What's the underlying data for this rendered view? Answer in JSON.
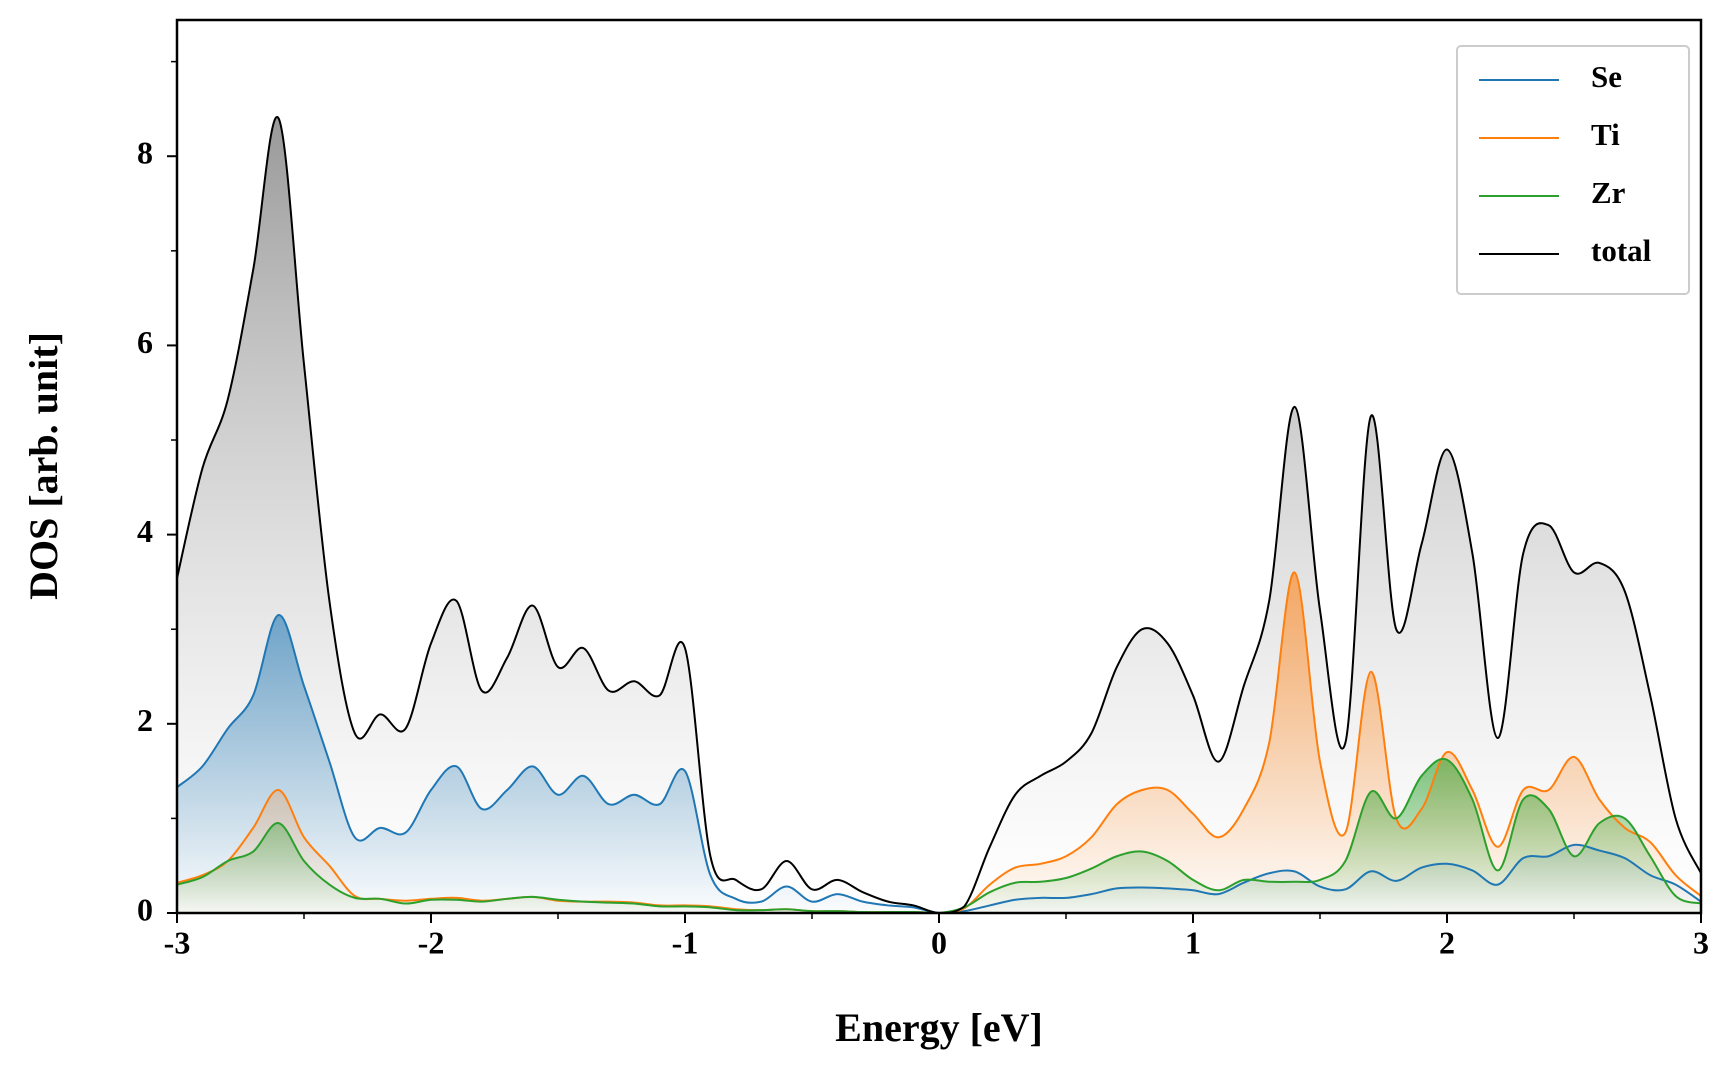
{
  "chart_data": {
    "type": "line",
    "xlabel": "Energy [eV]",
    "ylabel": "DOS [arb. unit]",
    "xlim": [
      -3,
      3
    ],
    "ylim": [
      0,
      9.44
    ],
    "xticks": [
      -3,
      -2,
      -1,
      0,
      1,
      2,
      3
    ],
    "yticks": [
      0,
      2,
      4,
      6,
      8
    ],
    "xminorticks": [
      -2.5,
      -1.5,
      -0.5,
      0.5,
      1.5,
      2.5
    ],
    "yminorticks": [
      1,
      3,
      5,
      7,
      9
    ],
    "legend": "upper right",
    "fill": true,
    "x": [
      -3,
      -2.9,
      -2.8,
      -2.7,
      -2.6,
      -2.5,
      -2.4,
      -2.3,
      -2.2,
      -2.1,
      -2,
      -1.9,
      -1.8,
      -1.7,
      -1.6,
      -1.5,
      -1.4,
      -1.3,
      -1.2,
      -1.1,
      -1,
      -0.9,
      -0.8,
      -0.7,
      -0.6,
      -0.5,
      -0.4,
      -0.3,
      -0.2,
      -0.1,
      0,
      0.1,
      0.2,
      0.3,
      0.4,
      0.5,
      0.6,
      0.7,
      0.8,
      0.9,
      1,
      1.1,
      1.2,
      1.3,
      1.4,
      1.5,
      1.6,
      1.7,
      1.8,
      1.9,
      2,
      2.1,
      2.2,
      2.3,
      2.4,
      2.5,
      2.6,
      2.7,
      2.8,
      2.9,
      3
    ],
    "series": [
      {
        "name": "Se",
        "color": "#1f77b4",
        "values": [
          1.33,
          1.55,
          1.95,
          2.3,
          3.15,
          2.4,
          1.6,
          0.8,
          0.9,
          0.85,
          1.3,
          1.55,
          1.1,
          1.3,
          1.55,
          1.25,
          1.45,
          1.15,
          1.25,
          1.15,
          1.5,
          0.4,
          0.15,
          0.12,
          0.28,
          0.12,
          0.2,
          0.12,
          0.08,
          0.06,
          0,
          0.02,
          0.08,
          0.14,
          0.16,
          0.16,
          0.2,
          0.26,
          0.27,
          0.26,
          0.24,
          0.2,
          0.32,
          0.42,
          0.44,
          0.28,
          0.25,
          0.44,
          0.34,
          0.48,
          0.52,
          0.45,
          0.3,
          0.58,
          0.6,
          0.72,
          0.66,
          0.58,
          0.4,
          0.3,
          0.12
        ]
      },
      {
        "name": "Ti",
        "color": "#ff7f0e",
        "values": [
          0.32,
          0.4,
          0.55,
          0.9,
          1.3,
          0.8,
          0.5,
          0.18,
          0.15,
          0.13,
          0.15,
          0.16,
          0.13,
          0.15,
          0.17,
          0.13,
          0.12,
          0.12,
          0.11,
          0.08,
          0.08,
          0.07,
          0.04,
          0.03,
          0.04,
          0.02,
          0.02,
          0.01,
          0.01,
          0.01,
          0,
          0.05,
          0.3,
          0.48,
          0.52,
          0.6,
          0.8,
          1.15,
          1.3,
          1.3,
          1.05,
          0.8,
          1.1,
          1.8,
          3.6,
          1.6,
          0.85,
          2.55,
          1,
          1.1,
          1.7,
          1.3,
          0.7,
          1.3,
          1.3,
          1.65,
          1.2,
          0.9,
          0.75,
          0.4,
          0.18
        ]
      },
      {
        "name": "Zr",
        "color": "#2ca02c",
        "values": [
          0.3,
          0.38,
          0.55,
          0.65,
          0.95,
          0.55,
          0.3,
          0.16,
          0.15,
          0.1,
          0.14,
          0.14,
          0.12,
          0.15,
          0.17,
          0.14,
          0.12,
          0.11,
          0.1,
          0.07,
          0.07,
          0.06,
          0.03,
          0.03,
          0.04,
          0.02,
          0.02,
          0.01,
          0.01,
          0.01,
          0,
          0.06,
          0.22,
          0.32,
          0.33,
          0.37,
          0.47,
          0.6,
          0.65,
          0.55,
          0.35,
          0.24,
          0.35,
          0.33,
          0.33,
          0.35,
          0.55,
          1.28,
          1,
          1.45,
          1.62,
          1.2,
          0.45,
          1.2,
          1.1,
          0.6,
          0.95,
          1,
          0.6,
          0.18,
          0.1
        ]
      },
      {
        "name": "total",
        "color": "#000000",
        "values": [
          3.54,
          4.7,
          5.43,
          6.8,
          8.4,
          5.8,
          3.3,
          1.9,
          2.1,
          1.95,
          2.85,
          3.3,
          2.35,
          2.7,
          3.25,
          2.6,
          2.8,
          2.35,
          2.45,
          2.3,
          2.8,
          0.6,
          0.35,
          0.25,
          0.55,
          0.25,
          0.35,
          0.22,
          0.12,
          0.08,
          0,
          0.07,
          0.7,
          1.25,
          1.45,
          1.6,
          1.9,
          2.6,
          3,
          2.85,
          2.3,
          1.6,
          2.4,
          3.3,
          5.35,
          3.2,
          1.8,
          5.25,
          3,
          3.9,
          4.9,
          3.8,
          1.85,
          3.8,
          4.1,
          3.6,
          3.7,
          3.4,
          2.3,
          1,
          0.42
        ]
      }
    ]
  }
}
